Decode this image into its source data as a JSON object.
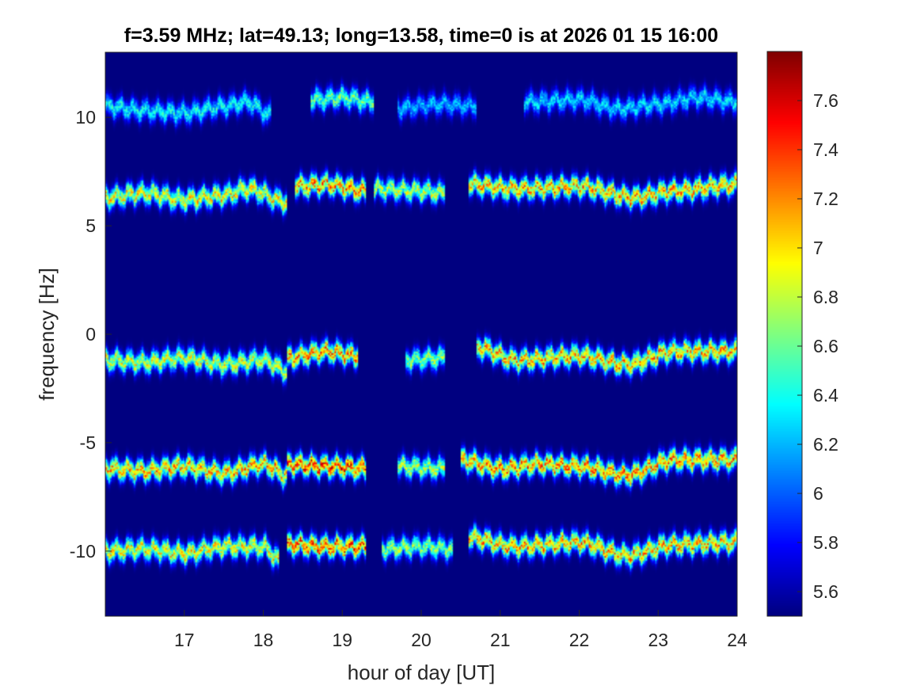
{
  "chart_data": {
    "type": "heatmap",
    "title": "f=3.59 MHz;  lat=49.13; long=13.58, time=0 is at 2026 01 15 16:00",
    "xlabel": "hour of day [UT]",
    "ylabel": "frequency [Hz]",
    "xlim": [
      16,
      24
    ],
    "ylim": [
      -13,
      13
    ],
    "x_ticks": [
      17,
      18,
      19,
      20,
      21,
      22,
      23,
      24
    ],
    "y_ticks": [
      -10,
      -5,
      0,
      5,
      10
    ],
    "colorbar": {
      "clim": [
        5.5,
        7.8
      ],
      "ticks": [
        5.6,
        5.8,
        6,
        6.2,
        6.4,
        6.6,
        6.8,
        7,
        7.2,
        7.4,
        7.6
      ],
      "colormap": "jet"
    },
    "background_value": 5.5,
    "traces": [
      {
        "name": "",
        "segments": [
          {
            "x": [
              16.0,
              16.5,
              17.0,
              17.5,
              17.8,
              18.1
            ],
            "y": [
              10.5,
              10.3,
              10.2,
              10.5,
              10.7,
              10.1
            ],
            "peak": 6.6
          },
          {
            "x": [
              18.6,
              19.0,
              19.4
            ],
            "y": [
              10.8,
              10.9,
              10.7
            ],
            "peak": 6.9
          },
          {
            "x": [
              19.7,
              20.2,
              20.7
            ],
            "y": [
              10.4,
              10.6,
              10.5
            ],
            "peak": 6.4
          },
          {
            "x": [
              21.3,
              22.0,
              22.5,
              23.0,
              23.5,
              24.0
            ],
            "y": [
              10.7,
              10.8,
              10.4,
              10.6,
              10.9,
              10.7
            ],
            "peak": 6.5
          }
        ]
      },
      {
        "name": "",
        "segments": [
          {
            "x": [
              16.0,
              16.5,
              17.0,
              17.5,
              17.8,
              18.3
            ],
            "y": [
              6.3,
              6.5,
              6.2,
              6.4,
              6.7,
              6.1
            ],
            "peak": 7.3
          },
          {
            "x": [
              18.4,
              18.8,
              19.3
            ],
            "y": [
              6.8,
              6.9,
              6.6
            ],
            "peak": 7.6
          },
          {
            "x": [
              19.4,
              20.0,
              20.3
            ],
            "y": [
              6.7,
              6.6,
              6.5
            ],
            "peak": 7.1
          },
          {
            "x": [
              20.6,
              21.2,
              22.0,
              22.7,
              23.2,
              24.0
            ],
            "y": [
              6.9,
              6.7,
              6.8,
              6.3,
              6.6,
              6.9
            ],
            "peak": 7.5
          }
        ]
      },
      {
        "name": "",
        "segments": [
          {
            "x": [
              16.0,
              16.5,
              17.0,
              17.5,
              18.0,
              18.3
            ],
            "y": [
              -1.2,
              -1.3,
              -1.1,
              -1.4,
              -1.2,
              -1.7
            ],
            "peak": 7.2
          },
          {
            "x": [
              18.3,
              18.8,
              19.2
            ],
            "y": [
              -1.1,
              -0.8,
              -1.0
            ],
            "peak": 7.6
          },
          {
            "x": [
              19.8,
              20.3
            ],
            "y": [
              -1.2,
              -1.1
            ],
            "peak": 7.0
          },
          {
            "x": [
              20.7,
              21.2,
              22.0,
              22.6,
              23.2,
              24.0
            ],
            "y": [
              -0.6,
              -1.2,
              -1.0,
              -1.4,
              -0.8,
              -0.8
            ],
            "peak": 7.5
          }
        ]
      },
      {
        "name": "",
        "segments": [
          {
            "x": [
              16.0,
              16.5,
              17.0,
              17.5,
              18.0,
              18.3
            ],
            "y": [
              -6.2,
              -6.3,
              -6.1,
              -6.4,
              -6.0,
              -6.5
            ],
            "peak": 7.5
          },
          {
            "x": [
              18.3,
              18.8,
              19.3
            ],
            "y": [
              -6.0,
              -6.1,
              -6.2
            ],
            "peak": 7.8
          },
          {
            "x": [
              19.7,
              20.3
            ],
            "y": [
              -6.1,
              -6.2
            ],
            "peak": 7.1
          },
          {
            "x": [
              20.5,
              21.0,
              21.5,
              22.0,
              22.6,
              23.2,
              24.0
            ],
            "y": [
              -5.8,
              -6.2,
              -6.0,
              -6.1,
              -6.5,
              -5.8,
              -5.8
            ],
            "peak": 7.6
          }
        ]
      },
      {
        "name": "",
        "segments": [
          {
            "x": [
              16.0,
              16.5,
              17.0,
              17.5,
              18.0,
              18.2
            ],
            "y": [
              -10.0,
              -9.9,
              -10.1,
              -9.8,
              -9.8,
              -10.4
            ],
            "peak": 7.3
          },
          {
            "x": [
              18.3,
              18.8,
              19.3
            ],
            "y": [
              -9.7,
              -9.8,
              -9.8
            ],
            "peak": 7.7
          },
          {
            "x": [
              19.5,
              20.0,
              20.4
            ],
            "y": [
              -9.9,
              -9.8,
              -9.9
            ],
            "peak": 7.0
          },
          {
            "x": [
              20.6,
              21.2,
              22.0,
              22.6,
              23.2,
              24.0
            ],
            "y": [
              -9.4,
              -9.8,
              -9.6,
              -10.2,
              -9.7,
              -9.6
            ],
            "peak": 7.5
          }
        ]
      }
    ]
  }
}
